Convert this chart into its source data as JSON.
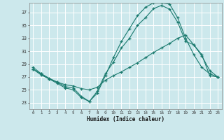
{
  "xlabel": "Humidex (Indice chaleur)",
  "bg_color": "#cce8ec",
  "grid_color": "#ffffff",
  "line_color": "#1a7a6e",
  "xlim": [
    -0.5,
    23.5
  ],
  "ylim": [
    22.0,
    38.5
  ],
  "yticks": [
    23,
    25,
    27,
    29,
    31,
    33,
    35,
    37
  ],
  "xticks": [
    0,
    1,
    2,
    3,
    4,
    5,
    6,
    7,
    8,
    9,
    10,
    11,
    12,
    13,
    14,
    15,
    16,
    17,
    18,
    19,
    20,
    21,
    22,
    23
  ],
  "series1_x": [
    0,
    1,
    2,
    3,
    4,
    5,
    6,
    7,
    8,
    9,
    10,
    11,
    12,
    13,
    14,
    15,
    16,
    17,
    18,
    19,
    20,
    21,
    22,
    23
  ],
  "series1_y": [
    28.2,
    27.5,
    26.8,
    26.2,
    25.8,
    25.6,
    25.2,
    25.0,
    25.4,
    26.5,
    27.2,
    27.8,
    28.5,
    29.2,
    30.0,
    30.8,
    31.5,
    32.2,
    33.0,
    33.5,
    32.0,
    30.5,
    27.2,
    27.0
  ],
  "series2_x": [
    0,
    1,
    2,
    3,
    4,
    5,
    6,
    7,
    8,
    9,
    10,
    11,
    12,
    13,
    14,
    15,
    16,
    17,
    18,
    19,
    20,
    21,
    22,
    23
  ],
  "series2_y": [
    28.2,
    27.3,
    26.7,
    26.0,
    25.3,
    25.0,
    23.8,
    23.2,
    24.8,
    27.5,
    29.3,
    31.5,
    33.0,
    35.0,
    36.2,
    37.6,
    38.1,
    37.5,
    35.5,
    32.5,
    32.0,
    30.3,
    28.0,
    27.0
  ],
  "series3_x": [
    0,
    1,
    2,
    3,
    4,
    5,
    6,
    7,
    8,
    9,
    10,
    11,
    12,
    13,
    14,
    15,
    16,
    17,
    18,
    19,
    20,
    21,
    22,
    23
  ],
  "series3_y": [
    28.5,
    27.5,
    26.7,
    26.2,
    25.5,
    25.3,
    24.0,
    23.2,
    24.5,
    27.2,
    30.0,
    32.5,
    34.5,
    36.5,
    37.8,
    38.5,
    38.5,
    38.3,
    36.2,
    33.0,
    30.5,
    28.5,
    27.5,
    27.0
  ]
}
